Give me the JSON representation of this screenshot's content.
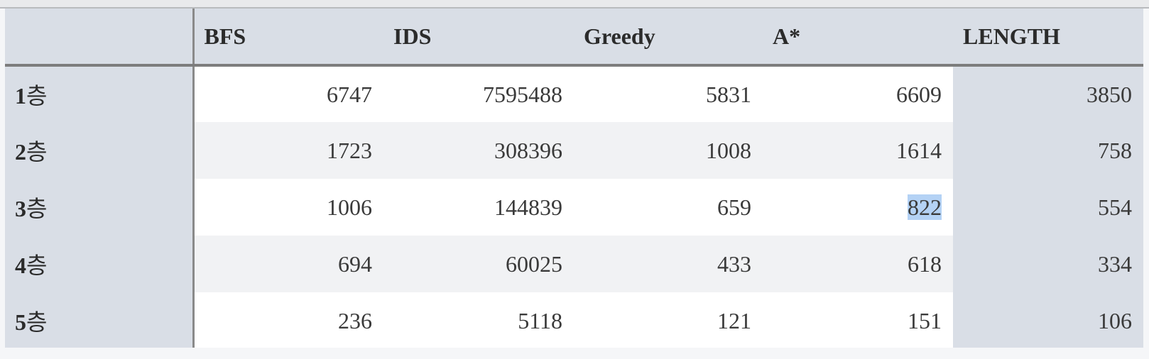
{
  "table": {
    "headers": [
      "",
      "BFS",
      "IDS",
      "Greedy",
      "A*",
      "LENGTH"
    ],
    "rows": [
      {
        "num": "1",
        "suffix": "층",
        "values": [
          "6747",
          "7595488",
          "5831",
          "6609",
          "3850"
        ]
      },
      {
        "num": "2",
        "suffix": "층",
        "values": [
          "1723",
          "308396",
          "1008",
          "1614",
          "758"
        ]
      },
      {
        "num": "3",
        "suffix": "층",
        "values": [
          "1006",
          "144839",
          "659",
          "822",
          "554"
        ]
      },
      {
        "num": "4",
        "suffix": "층",
        "values": [
          "694",
          "60025",
          "433",
          "618",
          "334"
        ]
      },
      {
        "num": "5",
        "suffix": "층",
        "values": [
          "236",
          "5118",
          "121",
          "151",
          "106"
        ]
      }
    ],
    "selected_cell": {
      "row": 3,
      "column": "A*",
      "value": "822"
    }
  },
  "colors": {
    "header_bg": "#d9dee6",
    "row_odd": "#ffffff",
    "row_even": "#f1f2f4",
    "selection": "#b4d2f5"
  }
}
